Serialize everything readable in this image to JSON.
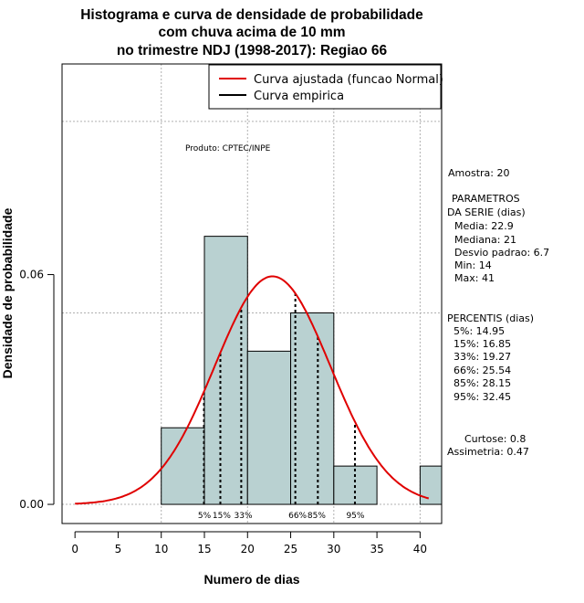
{
  "title_lines": [
    "Histograma e curva de densidade de probabilidade",
    "com chuva acima de 10 mm",
    "no trimestre NDJ (1998-2017): Regiao 66"
  ],
  "product_label": "Produto: CPTEC/INPE",
  "legend": {
    "items": [
      {
        "label": "Curva ajustada (funcao Normal)",
        "color": "#e00000"
      },
      {
        "label": "Curva empirica",
        "color": "#000000"
      }
    ]
  },
  "side_panel": {
    "sample": "Amostra: 20",
    "params_title_1": "PARAMETROS",
    "params_title_2": "DA SERIE (dias)",
    "params": [
      "Media: 22.9",
      "Mediana: 21",
      "Desvio padrao: 6.7",
      "Min: 14",
      "Max: 41"
    ],
    "percentis_title": "PERCENTIS (dias)",
    "percentis": [
      "5%: 14.95",
      "15%: 16.85",
      "33%: 19.27",
      "66%: 25.54",
      "85%: 28.15",
      "95%: 32.45"
    ],
    "kurtosis": "Curtose: 0.8",
    "skewness": "Assimetria: 0.47"
  },
  "colors": {
    "bars": "#b9d1d1",
    "normal_curve": "#e00000",
    "grid": "#b0b0b0"
  },
  "chart_data": {
    "type": "bar",
    "title": "Histograma e curva de densidade de probabilidade com chuva acima de 10 mm no trimestre NDJ (1998-2017): Regiao 66",
    "xlabel": "Numero de dias",
    "ylabel": "Densidade de probabilidade",
    "xlim": [
      -1.5,
      42.5
    ],
    "ylim": [
      -0.005,
      0.115
    ],
    "x_ticks": [
      0,
      5,
      10,
      15,
      20,
      25,
      30,
      35,
      40
    ],
    "y_ticks": [
      0.0,
      0.06
    ],
    "y_tick_labels": [
      "0.00",
      "0.06"
    ],
    "grid": true,
    "bins": [
      {
        "start": 10,
        "end": 15,
        "density": 0.02
      },
      {
        "start": 15,
        "end": 20,
        "density": 0.07
      },
      {
        "start": 20,
        "end": 25,
        "density": 0.04
      },
      {
        "start": 25,
        "end": 30,
        "density": 0.05
      },
      {
        "start": 30,
        "end": 35,
        "density": 0.01
      },
      {
        "start": 35,
        "end": 40,
        "density": 0.0
      },
      {
        "start": 40,
        "end": 45,
        "density": 0.01
      }
    ],
    "normal_fit": {
      "mean": 22.9,
      "sd": 6.7,
      "x_range": [
        0,
        41
      ]
    },
    "percentiles": [
      {
        "label": "5%",
        "value": 14.95
      },
      {
        "label": "15%",
        "value": 16.85
      },
      {
        "label": "33%",
        "value": 19.27
      },
      {
        "label": "66%",
        "value": 25.54
      },
      {
        "label": "85%",
        "value": 28.15
      },
      {
        "label": "95%",
        "value": 32.45
      }
    ],
    "percentile_label_positions_days": [
      {
        "label": "5%",
        "x": 15.0
      },
      {
        "label": "15%",
        "x": 17.0
      },
      {
        "label": "33%",
        "x": 19.5
      },
      {
        "label": "66%",
        "x": 25.8
      },
      {
        "label": "85%",
        "x": 28.0
      },
      {
        "label": "95%",
        "x": 32.5
      }
    ]
  }
}
